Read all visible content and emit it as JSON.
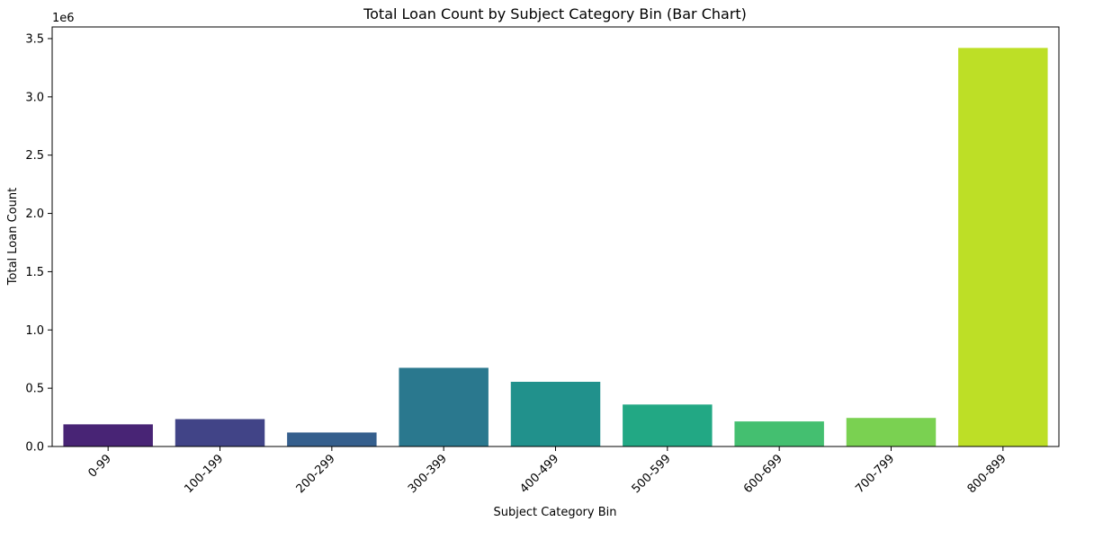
{
  "chart_data": {
    "type": "bar",
    "title": "Total Loan Count by Subject Category Bin (Bar Chart)",
    "xlabel": "Subject Category Bin",
    "ylabel": "Total Loan Count",
    "y_offset_label": "1e6",
    "categories": [
      "0-99",
      "100-199",
      "200-299",
      "300-399",
      "400-499",
      "500-599",
      "600-699",
      "700-799",
      "800-899"
    ],
    "values": [
      190000,
      235000,
      120000,
      675000,
      555000,
      360000,
      215000,
      245000,
      3420000
    ],
    "colors": [
      "#482475",
      "#414487",
      "#355f8d",
      "#2a788e",
      "#21918c",
      "#22a884",
      "#44bf70",
      "#7ad151",
      "#bddf26"
    ],
    "ylim": [
      0,
      3600000
    ],
    "yticks": [
      0,
      500000,
      1000000,
      1500000,
      2000000,
      2500000,
      3000000,
      3500000
    ],
    "ytick_labels": [
      "0.0",
      "0.5",
      "1.0",
      "1.5",
      "2.0",
      "2.5",
      "3.0",
      "3.5"
    ],
    "grid": false
  }
}
